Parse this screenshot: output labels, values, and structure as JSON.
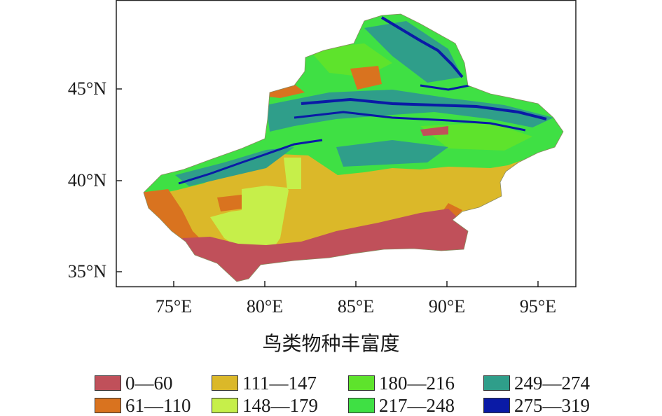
{
  "map": {
    "title": "鸟类物种丰富度",
    "lat_ticks": [
      "45°N",
      "40°N",
      "35°N"
    ],
    "lon_ticks": [
      "75°E",
      "80°E",
      "85°E",
      "90°E",
      "95°E"
    ],
    "legend": [
      {
        "label": "0—60",
        "color": "#c0505a"
      },
      {
        "label": "61—110",
        "color": "#d9731f"
      },
      {
        "label": "111—147",
        "color": "#dbb829"
      },
      {
        "label": "148—179",
        "color": "#c6ef4a"
      },
      {
        "label": "180—216",
        "color": "#5ee32c"
      },
      {
        "label": "217—248",
        "color": "#3fe044"
      },
      {
        "label": "249—274",
        "color": "#2f9e8a"
      },
      {
        "label": "275—319",
        "color": "#0a1aa6"
      }
    ]
  }
}
